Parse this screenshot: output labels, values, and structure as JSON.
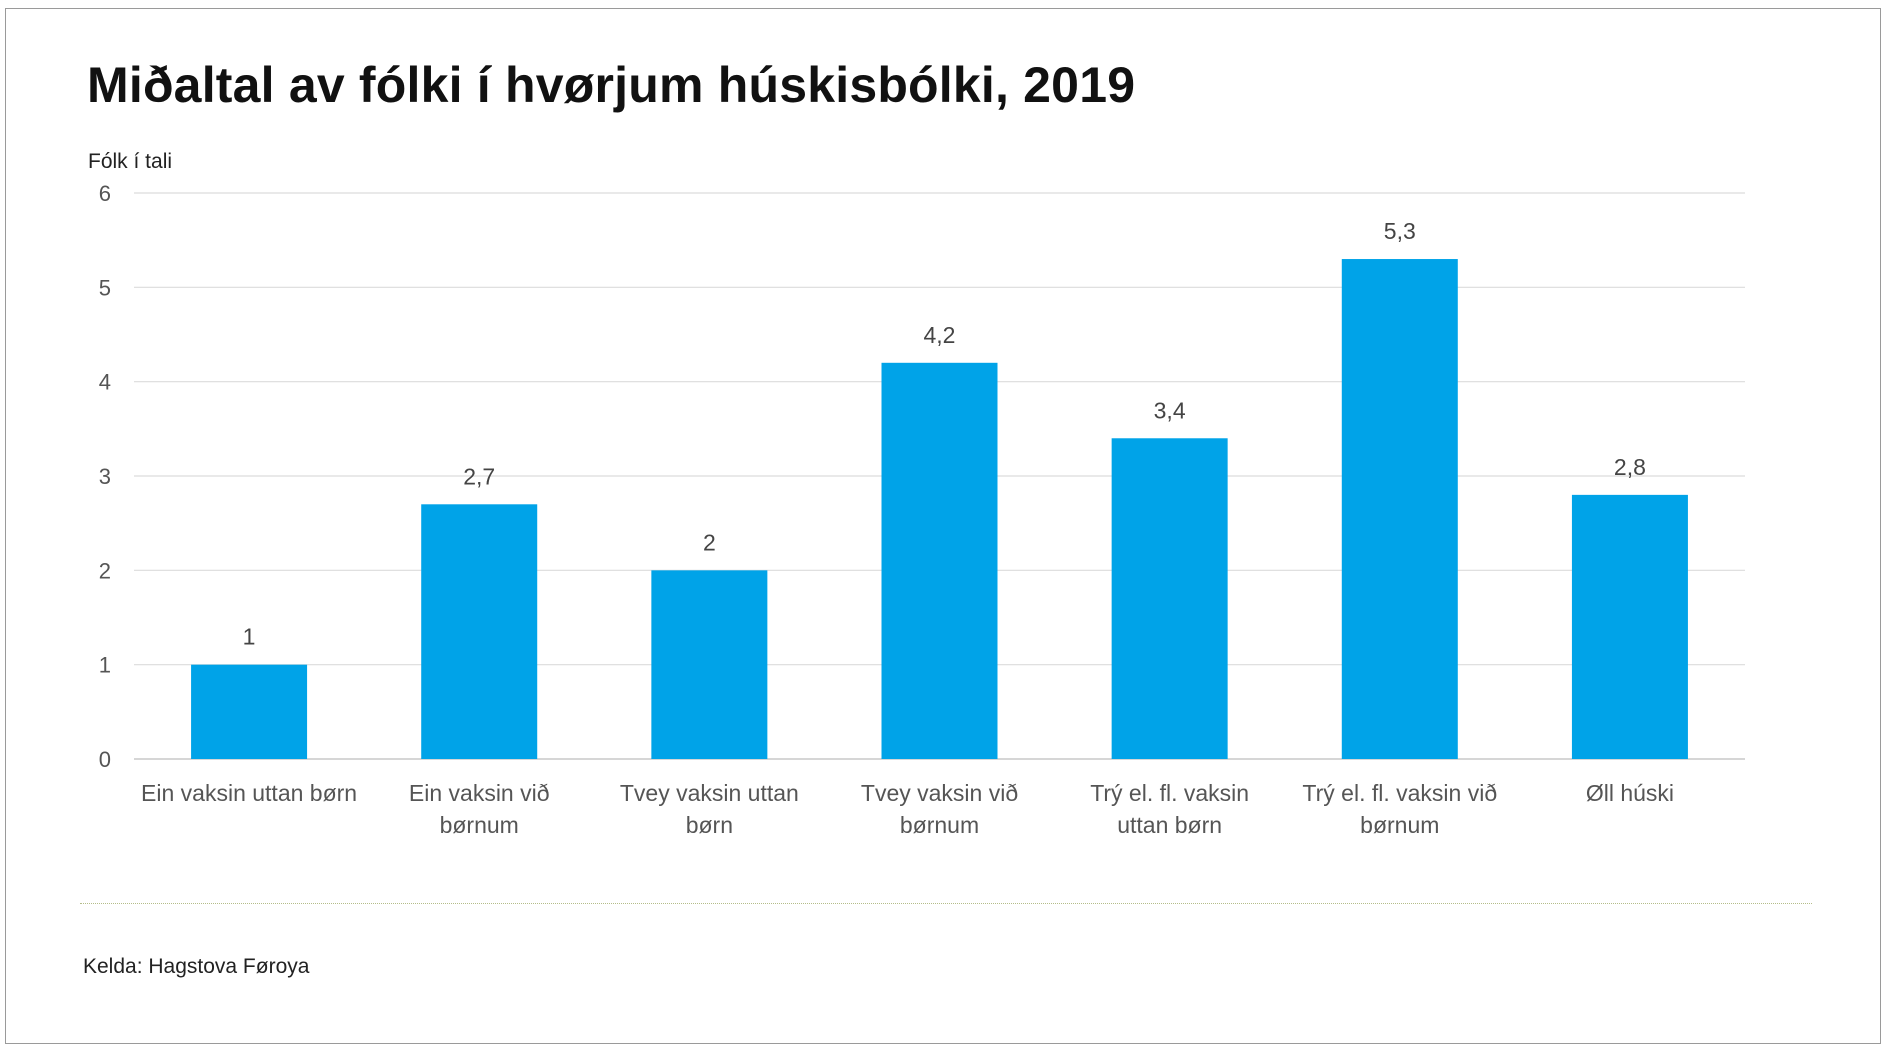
{
  "chart_data": {
    "type": "bar",
    "title": "Miðaltal av fólki í hvørjum húskisbólki, 2019",
    "ylabel": "Fólk í tali",
    "xlabel": "",
    "ylim": [
      0,
      6
    ],
    "yticks": [
      "0",
      "1",
      "2",
      "3",
      "4",
      "5",
      "6"
    ],
    "grid": true,
    "categories": [
      [
        "Ein vaksin uttan børn"
      ],
      [
        "Ein vaksin við",
        "børnum"
      ],
      [
        "Tvey vaksin uttan",
        "børn"
      ],
      [
        "Tvey vaksin við",
        "børnum"
      ],
      [
        "Trý el. fl. vaksin",
        "uttan børn"
      ],
      [
        "Trý el. fl. vaksin við",
        "børnum"
      ],
      [
        "Øll húski"
      ]
    ],
    "values": [
      1,
      2.7,
      2,
      4.2,
      3.4,
      5.3,
      2.8
    ],
    "value_labels": [
      "1",
      "2,7",
      "2",
      "4,2",
      "3,4",
      "5,3",
      "2,8"
    ],
    "bar_color": "#00a3e8",
    "source": "Kelda: Hagstova Føroya"
  }
}
